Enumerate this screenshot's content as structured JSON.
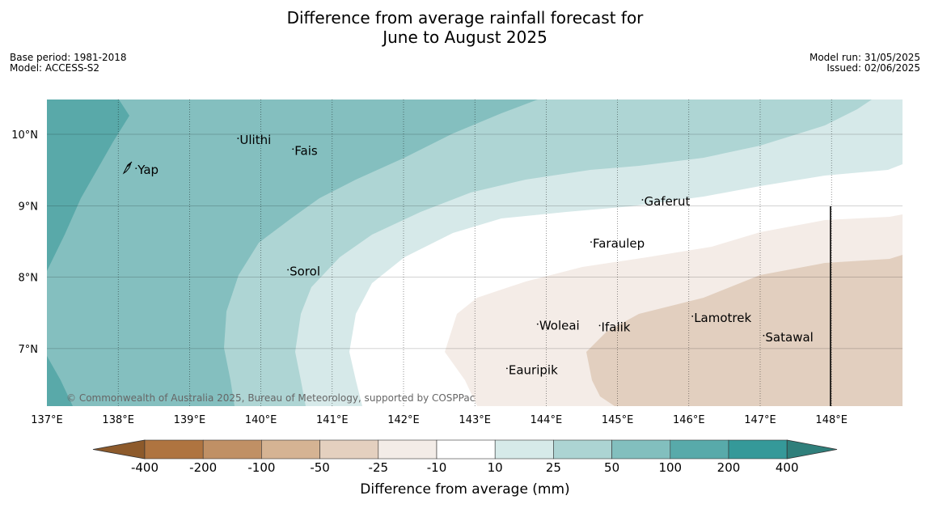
{
  "title_line1": "Difference from average rainfall forecast for",
  "title_line2": "June to August 2025",
  "base_period": "Base period: 1981-2018",
  "model": "Model: ACCESS-S2",
  "model_run": "Model run: 31/05/2025",
  "issued": "Issued: 02/06/2025",
  "copyright": "© Commonwealth of Australia 2025, Bureau of Meteorology, supported by COSPPac",
  "map": {
    "lon_ticks": [
      "137°E",
      "138°E",
      "139°E",
      "140°E",
      "141°E",
      "142°E",
      "143°E",
      "144°E",
      "145°E",
      "146°E",
      "147°E",
      "148°E"
    ],
    "lat_ticks": [
      "10°N",
      "9°N",
      "8°N",
      "7°N"
    ],
    "places": [
      {
        "name": "Yap",
        "lon": 138.25,
        "lat": 9.5
      },
      {
        "name": "Ulithi",
        "lon": 139.68,
        "lat": 9.92
      },
      {
        "name": "Fais",
        "lon": 140.45,
        "lat": 9.77
      },
      {
        "name": "Gaferut",
        "lon": 145.35,
        "lat": 9.06
      },
      {
        "name": "Faraulep",
        "lon": 144.63,
        "lat": 8.47
      },
      {
        "name": "Sorol",
        "lon": 140.38,
        "lat": 8.08
      },
      {
        "name": "Woleai",
        "lon": 143.88,
        "lat": 7.32
      },
      {
        "name": "Ifalik",
        "lon": 144.75,
        "lat": 7.3
      },
      {
        "name": "Lamotrek",
        "lon": 146.05,
        "lat": 7.43
      },
      {
        "name": "Satawal",
        "lon": 147.05,
        "lat": 7.16
      },
      {
        "name": "Eauripik",
        "lon": 143.45,
        "lat": 6.7
      }
    ]
  },
  "colorbar": {
    "title": "Difference from average (mm)",
    "labels": [
      "-400",
      "-200",
      "-100",
      "-50",
      "-25",
      "-10",
      "10",
      "25",
      "50",
      "100",
      "200",
      "400"
    ],
    "colors": [
      "#af7440",
      "#c09065",
      "#d5b393",
      "#e4d0bf",
      "#f3ece7",
      "#ffffff",
      "#d6eae9",
      "#acd4d3",
      "#82bfbe",
      "#58aaaa",
      "#359999"
    ],
    "extend_low": "#8d5a2b",
    "extend_high": "#2f7f7b"
  },
  "contour_colors": {
    "gt200": "#59a9a9",
    "gt100": "#84bfbf",
    "gt50": "#aed5d4",
    "gt25": "#d6e9e9",
    "neutral": "#ffffff",
    "lt_m25": "#f4ece7",
    "lt_m50": "#e2cfbf"
  }
}
